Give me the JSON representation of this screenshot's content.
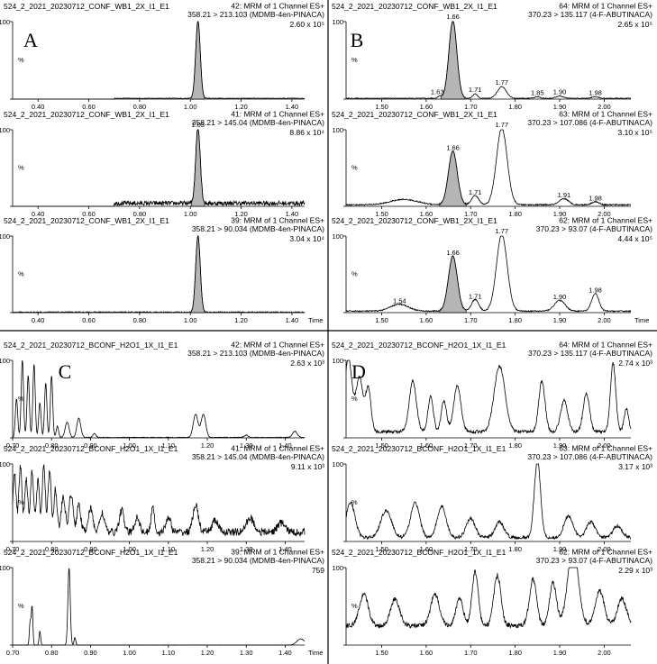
{
  "chart_data": [
    {
      "panel": "A",
      "letter": "A",
      "type": "line",
      "x_range": [
        0.3,
        1.45
      ],
      "x_ticks": [
        0.4,
        0.6,
        0.8,
        1.0,
        1.2,
        1.4
      ],
      "tick_decimals": 2,
      "traces": [
        {
          "file": "524_2_2021_20230712_CONF_WB1_2X_I1_E1",
          "function": "42: MRM of 1 Channel ES+",
          "transition": "358.21 > 213.103 (MDMB-4en-PINACA)",
          "intensity": "2.60 x 10⁵",
          "ymax": "100",
          "ylabel": "%",
          "show_time": false,
          "noise": {
            "x0": 0.7,
            "x1": 1.45,
            "amp": 0.4,
            "base": 1
          },
          "peaks": [
            {
              "rt": 1.03,
              "h": 100,
              "w": 0.009,
              "fill": true
            }
          ],
          "labels": []
        },
        {
          "file": "524_2_2021_20230712_CONF_WB1_2X_I1_E1",
          "function": "41: MRM of 1 Channel ES+",
          "transition": "358.21 > 145.04 (MDMB-4en-PINACA)",
          "intensity": "8.86 x 10⁴",
          "ymax": "100",
          "ylabel": "%",
          "show_time": false,
          "noise": {
            "x0": 0.7,
            "x1": 1.45,
            "amp": 3,
            "base": 4
          },
          "peaks": [
            {
              "rt": 1.03,
              "h": 100,
              "w": 0.009,
              "fill": true
            }
          ],
          "labels": [
            {
              "text": "1.03",
              "x": 1.03,
              "y": 100
            }
          ]
        },
        {
          "file": "524_2_2021_20230712_CONF_WB1_2X_I1_E1",
          "function": "39: MRM of 1 Channel ES+",
          "transition": "358.21 > 90.034 (MDMB-4en-PINACA)",
          "intensity": "3.04 x 10⁴",
          "ymax": "100",
          "ylabel": "%",
          "show_time": true,
          "noise": {
            "x0": 0.3,
            "x1": 1.45,
            "amp": 0.8,
            "base": 0.5
          },
          "peaks": [
            {
              "rt": 1.03,
              "h": 100,
              "w": 0.009,
              "fill": true
            }
          ],
          "labels": []
        }
      ]
    },
    {
      "panel": "B",
      "letter": "B",
      "type": "line",
      "x_range": [
        1.42,
        2.06
      ],
      "x_ticks": [
        1.5,
        1.6,
        1.7,
        1.8,
        1.9,
        2.0
      ],
      "tick_decimals": 2,
      "traces": [
        {
          "file": "524_2_2021_20230712_CONF_WB1_2X_I1_E1",
          "function": "64: MRM of 1 Channel ES+",
          "transition": "370.23 > 135.117 (4-F-ABUTINACA)",
          "intensity": "2.65 x 10⁵",
          "ymax": "100",
          "ylabel": "%",
          "show_time": false,
          "noise": {
            "x0": 1.42,
            "x1": 2.06,
            "amp": 0.5,
            "base": 1
          },
          "peaks": [
            {
              "rt": 1.63,
              "h": 3,
              "w": 0.004
            },
            {
              "rt": 1.66,
              "h": 100,
              "w": 0.009,
              "fill": true
            },
            {
              "rt": 1.71,
              "h": 6,
              "w": 0.005
            },
            {
              "rt": 1.77,
              "h": 15,
              "w": 0.01
            },
            {
              "rt": 1.85,
              "h": 2,
              "w": 0.006
            },
            {
              "rt": 1.9,
              "h": 3,
              "w": 0.008
            },
            {
              "rt": 1.98,
              "h": 2,
              "w": 0.008
            }
          ],
          "labels": [
            {
              "text": "1.66",
              "x": 1.66,
              "y": 100
            },
            {
              "text": "1.63",
              "x": 1.625,
              "y": 3
            },
            {
              "text": "1.71",
              "x": 1.71,
              "y": 6
            },
            {
              "text": "1.77",
              "x": 1.77,
              "y": 15
            },
            {
              "text": "1.85",
              "x": 1.85,
              "y": 2
            },
            {
              "text": "1.90",
              "x": 1.9,
              "y": 3
            },
            {
              "text": "1.98",
              "x": 1.98,
              "y": 2
            }
          ]
        },
        {
          "file": "524_2_2021_20230712_CONF_WB1_2X_I1_E1",
          "function": "63: MRM of 1 Channel ES+",
          "transition": "370.23 > 107.086 (4-F-ABUTINACA)",
          "intensity": "3.10 x 10⁵",
          "ymax": "100",
          "ylabel": "%",
          "show_time": false,
          "noise": {
            "x0": 1.42,
            "x1": 2.06,
            "amp": 0.8,
            "base": 2
          },
          "peaks": [
            {
              "rt": 1.55,
              "h": 7,
              "w": 0.03
            },
            {
              "rt": 1.66,
              "h": 70,
              "w": 0.01,
              "fill": true
            },
            {
              "rt": 1.71,
              "h": 12,
              "w": 0.008
            },
            {
              "rt": 1.77,
              "h": 100,
              "w": 0.012
            },
            {
              "rt": 1.91,
              "h": 8,
              "w": 0.01
            },
            {
              "rt": 1.98,
              "h": 4,
              "w": 0.008
            }
          ],
          "labels": [
            {
              "text": "1.66",
              "x": 1.66,
              "y": 70
            },
            {
              "text": "1.71",
              "x": 1.71,
              "y": 12
            },
            {
              "text": "1.77",
              "x": 1.77,
              "y": 100
            },
            {
              "text": "1.91",
              "x": 1.91,
              "y": 8
            },
            {
              "text": "1.98",
              "x": 1.98,
              "y": 4
            }
          ]
        },
        {
          "file": "524_2_2021_20230712_CONF_WB1_2X_I1_E1",
          "function": "62: MRM of 1 Channel ES+",
          "transition": "370.23 > 93.07 (4-F-ABUTINACA)",
          "intensity": "4.44 x 10⁵",
          "ymax": "100",
          "ylabel": "%",
          "show_time": true,
          "noise": {
            "x0": 1.42,
            "x1": 2.06,
            "amp": 0.8,
            "base": 2
          },
          "peaks": [
            {
              "rt": 1.54,
              "h": 9,
              "w": 0.02
            },
            {
              "rt": 1.66,
              "h": 72,
              "w": 0.01,
              "fill": true
            },
            {
              "rt": 1.71,
              "h": 15,
              "w": 0.008
            },
            {
              "rt": 1.77,
              "h": 100,
              "w": 0.012
            },
            {
              "rt": 1.9,
              "h": 14,
              "w": 0.012
            },
            {
              "rt": 1.98,
              "h": 23,
              "w": 0.008
            }
          ],
          "labels": [
            {
              "text": "1.66",
              "x": 1.66,
              "y": 72
            },
            {
              "text": "1.54",
              "x": 1.54,
              "y": 9
            },
            {
              "text": "1.71",
              "x": 1.71,
              "y": 15
            },
            {
              "text": "1.77",
              "x": 1.77,
              "y": 100
            },
            {
              "text": "1.90",
              "x": 1.9,
              "y": 14
            },
            {
              "text": "1.98",
              "x": 1.98,
              "y": 23
            }
          ]
        }
      ]
    },
    {
      "panel": "C",
      "letter": "C",
      "type": "line",
      "x_range": [
        0.7,
        1.45
      ],
      "x_ticks": [
        0.7,
        0.8,
        0.9,
        1.0,
        1.1,
        1.2,
        1.3,
        1.4
      ],
      "tick_decimals": 2,
      "traces": [
        {
          "file": "524_2_2021_20230712_BCONF_H2O1_1X_I1_E1",
          "function": "42: MRM of 1 Channel ES+",
          "transition": "358.21 > 213.103 (MDMB-4en-PINACA)",
          "intensity": "2.63 x 10³",
          "ymax": "100",
          "ylabel": "%",
          "show_time": false,
          "noise": {
            "x0": 0.7,
            "x1": 1.45,
            "amp": 0.5,
            "base": 0.5
          },
          "peaks": [
            {
              "rt": 0.71,
              "h": 50,
              "w": 0.003
            },
            {
              "rt": 0.725,
              "h": 100,
              "w": 0.003
            },
            {
              "rt": 0.74,
              "h": 80,
              "w": 0.003
            },
            {
              "rt": 0.755,
              "h": 95,
              "w": 0.003
            },
            {
              "rt": 0.77,
              "h": 45,
              "w": 0.003
            },
            {
              "rt": 0.785,
              "h": 70,
              "w": 0.003
            },
            {
              "rt": 0.8,
              "h": 80,
              "w": 0.003
            },
            {
              "rt": 0.815,
              "h": 15,
              "w": 0.003
            },
            {
              "rt": 0.84,
              "h": 20,
              "w": 0.005
            },
            {
              "rt": 0.87,
              "h": 25,
              "w": 0.005
            },
            {
              "rt": 0.91,
              "h": 5,
              "w": 0.004
            },
            {
              "rt": 1.17,
              "h": 30,
              "w": 0.006
            },
            {
              "rt": 1.19,
              "h": 30,
              "w": 0.006
            },
            {
              "rt": 1.3,
              "h": 3,
              "w": 0.005
            },
            {
              "rt": 1.425,
              "h": 8,
              "w": 0.006
            }
          ],
          "labels": []
        },
        {
          "file": "524_2_2021_20230712_BCONF_H2O1_1X_I1_E1",
          "function": "41: MRM of 1 Channel ES+",
          "transition": "358.21 > 145.04 (MDMB-4en-PINACA)",
          "intensity": "9.11 x 10³",
          "ymax": "100",
          "ylabel": "%",
          "show_time": false,
          "noise": {
            "x0": 0.7,
            "x1": 1.45,
            "amp": 5,
            "base": 12
          },
          "peaks": [
            {
              "rt": 0.705,
              "h": 75,
              "w": 0.004
            },
            {
              "rt": 0.72,
              "h": 85,
              "w": 0.004
            },
            {
              "rt": 0.735,
              "h": 70,
              "w": 0.004
            },
            {
              "rt": 0.75,
              "h": 80,
              "w": 0.004
            },
            {
              "rt": 0.765,
              "h": 65,
              "w": 0.004
            },
            {
              "rt": 0.78,
              "h": 85,
              "w": 0.004
            },
            {
              "rt": 0.795,
              "h": 80,
              "w": 0.004
            },
            {
              "rt": 0.81,
              "h": 55,
              "w": 0.004
            },
            {
              "rt": 0.83,
              "h": 45,
              "w": 0.005
            },
            {
              "rt": 0.85,
              "h": 50,
              "w": 0.005
            },
            {
              "rt": 0.87,
              "h": 35,
              "w": 0.005
            },
            {
              "rt": 0.9,
              "h": 30,
              "w": 0.006
            },
            {
              "rt": 0.93,
              "h": 25,
              "w": 0.006
            },
            {
              "rt": 0.98,
              "h": 28,
              "w": 0.006
            },
            {
              "rt": 1.02,
              "h": 20,
              "w": 0.006
            },
            {
              "rt": 1.06,
              "h": 35,
              "w": 0.004
            },
            {
              "rt": 1.1,
              "h": 20,
              "w": 0.006
            },
            {
              "rt": 1.17,
              "h": 35,
              "w": 0.007
            },
            {
              "rt": 1.22,
              "h": 15,
              "w": 0.008
            },
            {
              "rt": 1.31,
              "h": 18,
              "w": 0.01
            },
            {
              "rt": 1.39,
              "h": 12,
              "w": 0.01
            }
          ],
          "labels": []
        },
        {
          "file": "524_2_2021_20230712_BCONF_H2O1_1X_I1_E1",
          "function": "39: MRM of 1 Channel ES+",
          "transition": "358.21 > 90.034 (MDMB-4en-PINACA)",
          "intensity": "759",
          "ymax": "100",
          "ylabel": "%",
          "show_time": true,
          "noise": {
            "x0": 0.7,
            "x1": 1.45,
            "amp": 0.2,
            "base": 0
          },
          "peaks": [
            {
              "rt": 0.745,
              "h": 30,
              "w": 0.002
            },
            {
              "rt": 0.75,
              "h": 50,
              "w": 0.002
            },
            {
              "rt": 0.77,
              "h": 18,
              "w": 0.002
            },
            {
              "rt": 0.845,
              "h": 100,
              "w": 0.003
            },
            {
              "rt": 0.86,
              "h": 10,
              "w": 0.002
            },
            {
              "rt": 1.44,
              "h": 8,
              "w": 0.01
            }
          ],
          "labels": []
        }
      ]
    },
    {
      "panel": "D",
      "letter": "D",
      "type": "line",
      "x_range": [
        1.42,
        2.06
      ],
      "x_ticks": [
        1.5,
        1.6,
        1.7,
        1.8,
        1.9,
        2.0
      ],
      "tick_decimals": 2,
      "traces": [
        {
          "file": "524_2_2021_20230712_BCONF_H2O1_1X_I1_E1",
          "function": "64: MRM of 1 Channel ES+",
          "transition": "370.23 > 135.117 (4-F-ABUTINACA)",
          "intensity": "2.74 x 10³",
          "ymax": "100",
          "ylabel": "%",
          "show_time": false,
          "noise": {
            "x0": 1.42,
            "x1": 2.06,
            "amp": 2,
            "base": 8
          },
          "peaks": [
            {
              "rt": 1.425,
              "h": 95,
              "w": 0.008
            },
            {
              "rt": 1.45,
              "h": 70,
              "w": 0.008
            },
            {
              "rt": 1.47,
              "h": 55,
              "w": 0.006
            },
            {
              "rt": 1.57,
              "h": 65,
              "w": 0.008
            },
            {
              "rt": 1.61,
              "h": 45,
              "w": 0.006
            },
            {
              "rt": 1.64,
              "h": 40,
              "w": 0.006
            },
            {
              "rt": 1.67,
              "h": 60,
              "w": 0.008
            },
            {
              "rt": 1.765,
              "h": 85,
              "w": 0.012
            },
            {
              "rt": 1.86,
              "h": 65,
              "w": 0.007
            },
            {
              "rt": 1.91,
              "h": 40,
              "w": 0.008
            },
            {
              "rt": 1.96,
              "h": 50,
              "w": 0.007
            },
            {
              "rt": 2.02,
              "h": 88,
              "w": 0.006
            },
            {
              "rt": 2.05,
              "h": 30,
              "w": 0.005
            }
          ],
          "labels": []
        },
        {
          "file": "524_2_2021_20230712_BCONF_H2O1_1X_I1_E1",
          "function": "63: MRM of 1 Channel ES+",
          "transition": "370.23 > 107.086 (4-F-ABUTINACA)",
          "intensity": "3.17 x 10³",
          "ymax": "100",
          "ylabel": "%",
          "show_time": false,
          "noise": {
            "x0": 1.42,
            "x1": 2.06,
            "amp": 2,
            "base": 5
          },
          "peaks": [
            {
              "rt": 1.43,
              "h": 45,
              "w": 0.01
            },
            {
              "rt": 1.51,
              "h": 35,
              "w": 0.012
            },
            {
              "rt": 1.575,
              "h": 45,
              "w": 0.01
            },
            {
              "rt": 1.635,
              "h": 40,
              "w": 0.01
            },
            {
              "rt": 1.7,
              "h": 25,
              "w": 0.01
            },
            {
              "rt": 1.765,
              "h": 20,
              "w": 0.01
            },
            {
              "rt": 1.85,
              "h": 100,
              "w": 0.007
            },
            {
              "rt": 1.92,
              "h": 28,
              "w": 0.01
            },
            {
              "rt": 1.97,
              "h": 20,
              "w": 0.01
            },
            {
              "rt": 2.03,
              "h": 15,
              "w": 0.01
            }
          ],
          "labels": []
        },
        {
          "file": "524_2_2021_20230712_BCONF_H2O1_1X_I1_E1",
          "function": "62: MRM of 1 Channel ES+",
          "transition": "370.23 > 93.07 (4-F-ABUTINACA)",
          "intensity": "2.29 x 10³",
          "ymax": "100",
          "ylabel": "%",
          "show_time": false,
          "noise": {
            "x0": 1.42,
            "x1": 2.06,
            "amp": 3,
            "base": 25
          },
          "peaks": [
            {
              "rt": 1.46,
              "h": 40,
              "w": 0.01
            },
            {
              "rt": 1.53,
              "h": 35,
              "w": 0.01
            },
            {
              "rt": 1.62,
              "h": 40,
              "w": 0.01
            },
            {
              "rt": 1.675,
              "h": 35,
              "w": 0.008
            },
            {
              "rt": 1.71,
              "h": 70,
              "w": 0.007
            },
            {
              "rt": 1.76,
              "h": 65,
              "w": 0.008
            },
            {
              "rt": 1.84,
              "h": 60,
              "w": 0.008
            },
            {
              "rt": 1.885,
              "h": 55,
              "w": 0.008
            },
            {
              "rt": 1.93,
              "h": 100,
              "w": 0.012
            },
            {
              "rt": 1.99,
              "h": 45,
              "w": 0.01
            },
            {
              "rt": 2.04,
              "h": 35,
              "w": 0.01
            }
          ],
          "labels": []
        }
      ]
    }
  ],
  "time_label": "Time"
}
